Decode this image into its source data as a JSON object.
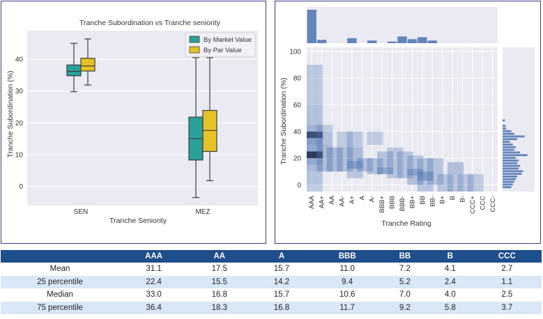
{
  "chart_data": [
    {
      "type": "box",
      "title": "Tranche Subordination vs Tranche seniority",
      "xlabel": "Tranche Seniority",
      "ylabel": "Tranche Subordination (%)",
      "categories": [
        "SEN",
        "MEZ"
      ],
      "yticks": [
        0,
        10,
        20,
        30,
        40
      ],
      "ylim": [
        -6,
        49
      ],
      "grid": true,
      "legend_position": "top-right",
      "series": [
        {
          "name": "By Market Value",
          "color": "#2aa198",
          "boxes": [
            {
              "whisker_low": 29.8,
              "q1": 34.8,
              "median": 36.2,
              "q3": 38.2,
              "whisker_high": 45.0
            },
            {
              "whisker_low": -3.5,
              "q1": 8.3,
              "median": 15.0,
              "q3": 21.8,
              "whisker_high": 40.5
            }
          ]
        },
        {
          "name": "By Par Value",
          "color": "#e6c229",
          "boxes": [
            {
              "whisker_low": 31.9,
              "q1": 36.3,
              "median": 37.9,
              "q3": 40.3,
              "whisker_high": 46.4
            },
            {
              "whisker_low": 1.8,
              "q1": 11.0,
              "median": 17.6,
              "q3": 23.9,
              "whisker_high": 40.5
            }
          ]
        }
      ]
    },
    {
      "type": "heatmap",
      "xlabel": "Tranche Rating",
      "ylabel": "Tranche Subordination (%)",
      "categories": [
        "AAA",
        "AA+",
        "AA",
        "AA-",
        "A+",
        "A",
        "A-",
        "BBB+",
        "BBB",
        "BBB-",
        "BB+",
        "BB",
        "BB-",
        "B+",
        "B",
        "B-",
        "CCC+",
        "CCC",
        "CCC-"
      ],
      "yticks": [
        0,
        20,
        40,
        60,
        80,
        100
      ],
      "ylim": [
        -5,
        103
      ],
      "color": "#4c72b0",
      "cells": [
        {
          "x": "AAA",
          "y0": 15,
          "y1": 20,
          "v": 0.45
        },
        {
          "x": "AAA",
          "y0": 20,
          "y1": 25,
          "v": 0.95
        },
        {
          "x": "AAA",
          "y0": 25,
          "y1": 30,
          "v": 0.45
        },
        {
          "x": "AAA",
          "y0": 30,
          "y1": 35,
          "v": 0.55
        },
        {
          "x": "AAA",
          "y0": 35,
          "y1": 40,
          "v": 0.9
        },
        {
          "x": "AAA",
          "y0": 40,
          "y1": 45,
          "v": 0.35
        },
        {
          "x": "AAA",
          "y0": 10,
          "y1": 15,
          "v": 0.3
        },
        {
          "x": "AAA",
          "y0": 45,
          "y1": 60,
          "v": 0.22
        },
        {
          "x": "AAA",
          "y0": 60,
          "y1": 90,
          "v": 0.16
        },
        {
          "x": "AAA",
          "y0": 0,
          "y1": 10,
          "v": 0.2
        },
        {
          "x": "AAA",
          "y0": -5,
          "y1": 0,
          "v": 0.14
        },
        {
          "x": "AA+",
          "y0": 20,
          "y1": 30,
          "v": 0.3
        },
        {
          "x": "AA+",
          "y0": 30,
          "y1": 40,
          "v": 0.22
        },
        {
          "x": "AA+",
          "y0": 40,
          "y1": 45,
          "v": 0.14
        },
        {
          "x": "AA+",
          "y0": 10,
          "y1": 20,
          "v": 0.25
        },
        {
          "x": "AA",
          "y0": 10,
          "y1": 28,
          "v": 0.28
        },
        {
          "x": "AA-",
          "y0": 10,
          "y1": 28,
          "v": 0.22
        },
        {
          "x": "AA-",
          "y0": 28,
          "y1": 40,
          "v": 0.14
        },
        {
          "x": "A+",
          "y0": 12,
          "y1": 18,
          "v": 0.55
        },
        {
          "x": "A+",
          "y0": 18,
          "y1": 28,
          "v": 0.28
        },
        {
          "x": "A+",
          "y0": 28,
          "y1": 40,
          "v": 0.16
        },
        {
          "x": "A+",
          "y0": 5,
          "y1": 12,
          "v": 0.18
        },
        {
          "x": "A",
          "y0": 10,
          "y1": 20,
          "v": 0.25
        },
        {
          "x": "A-",
          "y0": 8,
          "y1": 20,
          "v": 0.22
        },
        {
          "x": "A-",
          "y0": 30,
          "y1": 40,
          "v": 0.14
        },
        {
          "x": "BBB+",
          "y0": 8,
          "y1": 13,
          "v": 0.45
        },
        {
          "x": "BBB+",
          "y0": 13,
          "y1": 25,
          "v": 0.22
        },
        {
          "x": "BBB",
          "y0": 5,
          "y1": 28,
          "v": 0.18
        },
        {
          "x": "BBB-",
          "y0": 5,
          "y1": 25,
          "v": 0.2
        },
        {
          "x": "BB+",
          "y0": 7,
          "y1": 12,
          "v": 0.5
        },
        {
          "x": "BB+",
          "y0": 0,
          "y1": 7,
          "v": 0.25
        },
        {
          "x": "BB+",
          "y0": 12,
          "y1": 22,
          "v": 0.2
        },
        {
          "x": "BB",
          "y0": 3,
          "y1": 10,
          "v": 0.55
        },
        {
          "x": "BB",
          "y0": 10,
          "y1": 20,
          "v": 0.2
        },
        {
          "x": "BB",
          "y0": -5,
          "y1": 3,
          "v": 0.2
        },
        {
          "x": "BB-",
          "y0": 0,
          "y1": 20,
          "v": 0.2
        },
        {
          "x": "B+",
          "y0": -5,
          "y1": 8,
          "v": 0.18
        },
        {
          "x": "B",
          "y0": -5,
          "y1": 8,
          "v": 0.16
        },
        {
          "x": "B",
          "y0": 8,
          "y1": 17,
          "v": 0.25
        },
        {
          "x": "B-",
          "y0": -5,
          "y1": 8,
          "v": 0.16
        },
        {
          "x": "CCC+",
          "y0": -5,
          "y1": 8,
          "v": 0.14
        }
      ],
      "top_marginal": [
        {
          "x": "AAA",
          "v": 1.0
        },
        {
          "x": "AA+",
          "v": 0.1
        },
        {
          "x": "A+",
          "v": 0.15
        },
        {
          "x": "A-",
          "v": 0.08
        },
        {
          "x": "BBB",
          "v": 0.05
        },
        {
          "x": "BBB-",
          "v": 0.2
        },
        {
          "x": "BB+",
          "v": 0.12
        },
        {
          "x": "BB",
          "v": 0.18
        },
        {
          "x": "BB-",
          "v": 0.08
        }
      ],
      "right_marginal": [
        {
          "y": -2,
          "v": 0.3
        },
        {
          "y": 0,
          "v": 0.35
        },
        {
          "y": 2,
          "v": 0.4
        },
        {
          "y": 4,
          "v": 0.45
        },
        {
          "y": 6,
          "v": 0.5
        },
        {
          "y": 8,
          "v": 0.65
        },
        {
          "y": 10,
          "v": 0.7
        },
        {
          "y": 12,
          "v": 0.55
        },
        {
          "y": 14,
          "v": 0.6
        },
        {
          "y": 16,
          "v": 0.5
        },
        {
          "y": 18,
          "v": 0.55
        },
        {
          "y": 20,
          "v": 0.45
        },
        {
          "y": 22,
          "v": 0.85
        },
        {
          "y": 24,
          "v": 0.6
        },
        {
          "y": 26,
          "v": 0.4
        },
        {
          "y": 28,
          "v": 0.45
        },
        {
          "y": 30,
          "v": 0.35
        },
        {
          "y": 32,
          "v": 0.25
        },
        {
          "y": 34,
          "v": 0.5
        },
        {
          "y": 36,
          "v": 0.75
        },
        {
          "y": 38,
          "v": 0.4
        },
        {
          "y": 40,
          "v": 0.3
        },
        {
          "y": 42,
          "v": 0.12
        },
        {
          "y": 44,
          "v": 0.1
        },
        {
          "y": 48,
          "v": 0.08
        }
      ]
    }
  ],
  "table": {
    "headers": [
      "",
      "AAA",
      "AA",
      "A",
      "BBB",
      "BB",
      "B",
      "CCC"
    ],
    "rows": [
      {
        "label": "Mean",
        "values": [
          "31.1",
          "17.5",
          "15.7",
          "11.0",
          "7.2",
          "4.1",
          "2.7"
        ]
      },
      {
        "label": "25 percentile",
        "values": [
          "22.4",
          "15.5",
          "14.2",
          "9.4",
          "5.2",
          "2.4",
          "1.1"
        ]
      },
      {
        "label": "Median",
        "values": [
          "33.0",
          "16.8",
          "15.7",
          "10.6",
          "7.0",
          "4.0",
          "2.5"
        ]
      },
      {
        "label": "75 percentile",
        "values": [
          "36.4",
          "18.3",
          "16.8",
          "11.7",
          "9.2",
          "5.8",
          "3.7"
        ]
      }
    ]
  }
}
